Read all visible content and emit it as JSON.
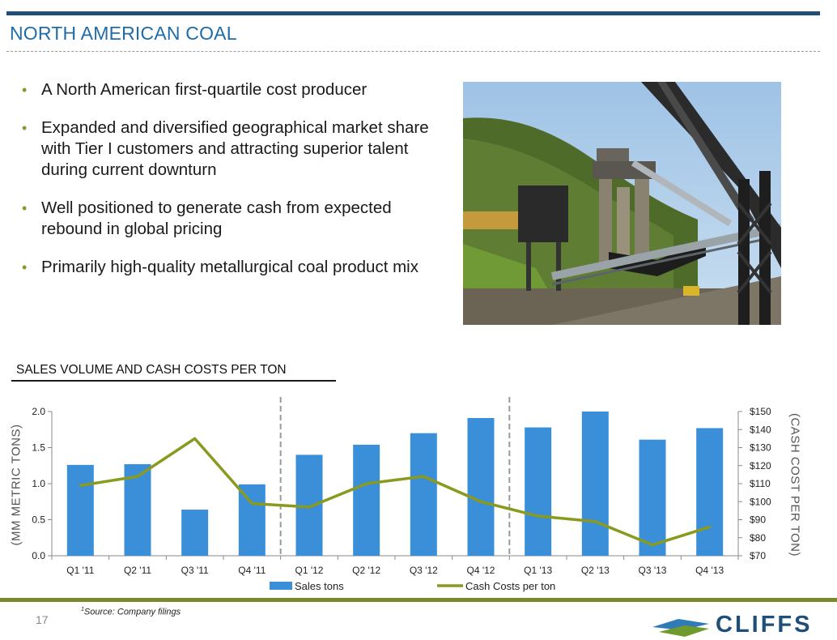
{
  "header": {
    "title": "NORTH AMERICAN COAL"
  },
  "bullets": [
    "A North American first-quartile cost producer",
    "Expanded and diversified geographical market share with Tier I customers and attracting superior talent during current downturn",
    "Well positioned to generate cash from expected rebound in global pricing",
    "Primarily high-quality metallurgical coal product mix"
  ],
  "chart_data": {
    "type": "bar",
    "title": "SALES VOLUME AND CASH COSTS PER TON",
    "categories": [
      "Q1 '11",
      "Q2 '11",
      "Q3 '11",
      "Q4 '11",
      "Q1 '12",
      "Q2 '12",
      "Q3 '12",
      "Q4 '12",
      "Q1 '13",
      "Q2 '13",
      "Q3 '13",
      "Q4 '13"
    ],
    "series": [
      {
        "name": "Sales tons",
        "type": "bar",
        "axis": "left",
        "color": "#3b8fd9",
        "values": [
          1.26,
          1.27,
          0.64,
          0.99,
          1.4,
          1.54,
          1.7,
          1.91,
          1.78,
          2.0,
          1.61,
          1.77
        ]
      },
      {
        "name": "Cash Costs per ton",
        "type": "line",
        "axis": "right",
        "color": "#8a9a1e",
        "values": [
          109,
          114,
          135,
          99,
          97,
          110,
          114,
          100,
          92,
          89,
          76,
          86
        ]
      }
    ],
    "ylabel": "(MM METRIC TONS)",
    "ylabel_right": "(CASH COST PER TON)",
    "ylim": [
      0,
      2.0
    ],
    "yticks": [
      "0.0",
      "0.5",
      "1.0",
      "1.5",
      "2.0"
    ],
    "ylim_right": [
      70,
      150
    ],
    "yticks_right": [
      "$70",
      "$80",
      "$90",
      "$100",
      "$110",
      "$120",
      "$130",
      "$140",
      "$150"
    ],
    "dividers_after": [
      "Q4 '11",
      "Q4 '12"
    ],
    "legend_position": "bottom",
    "grid": false
  },
  "footer": {
    "page_number": "17",
    "footnote_marker": "1",
    "footnote": "Source: Company filings",
    "logo_text": "CLIFFS"
  }
}
